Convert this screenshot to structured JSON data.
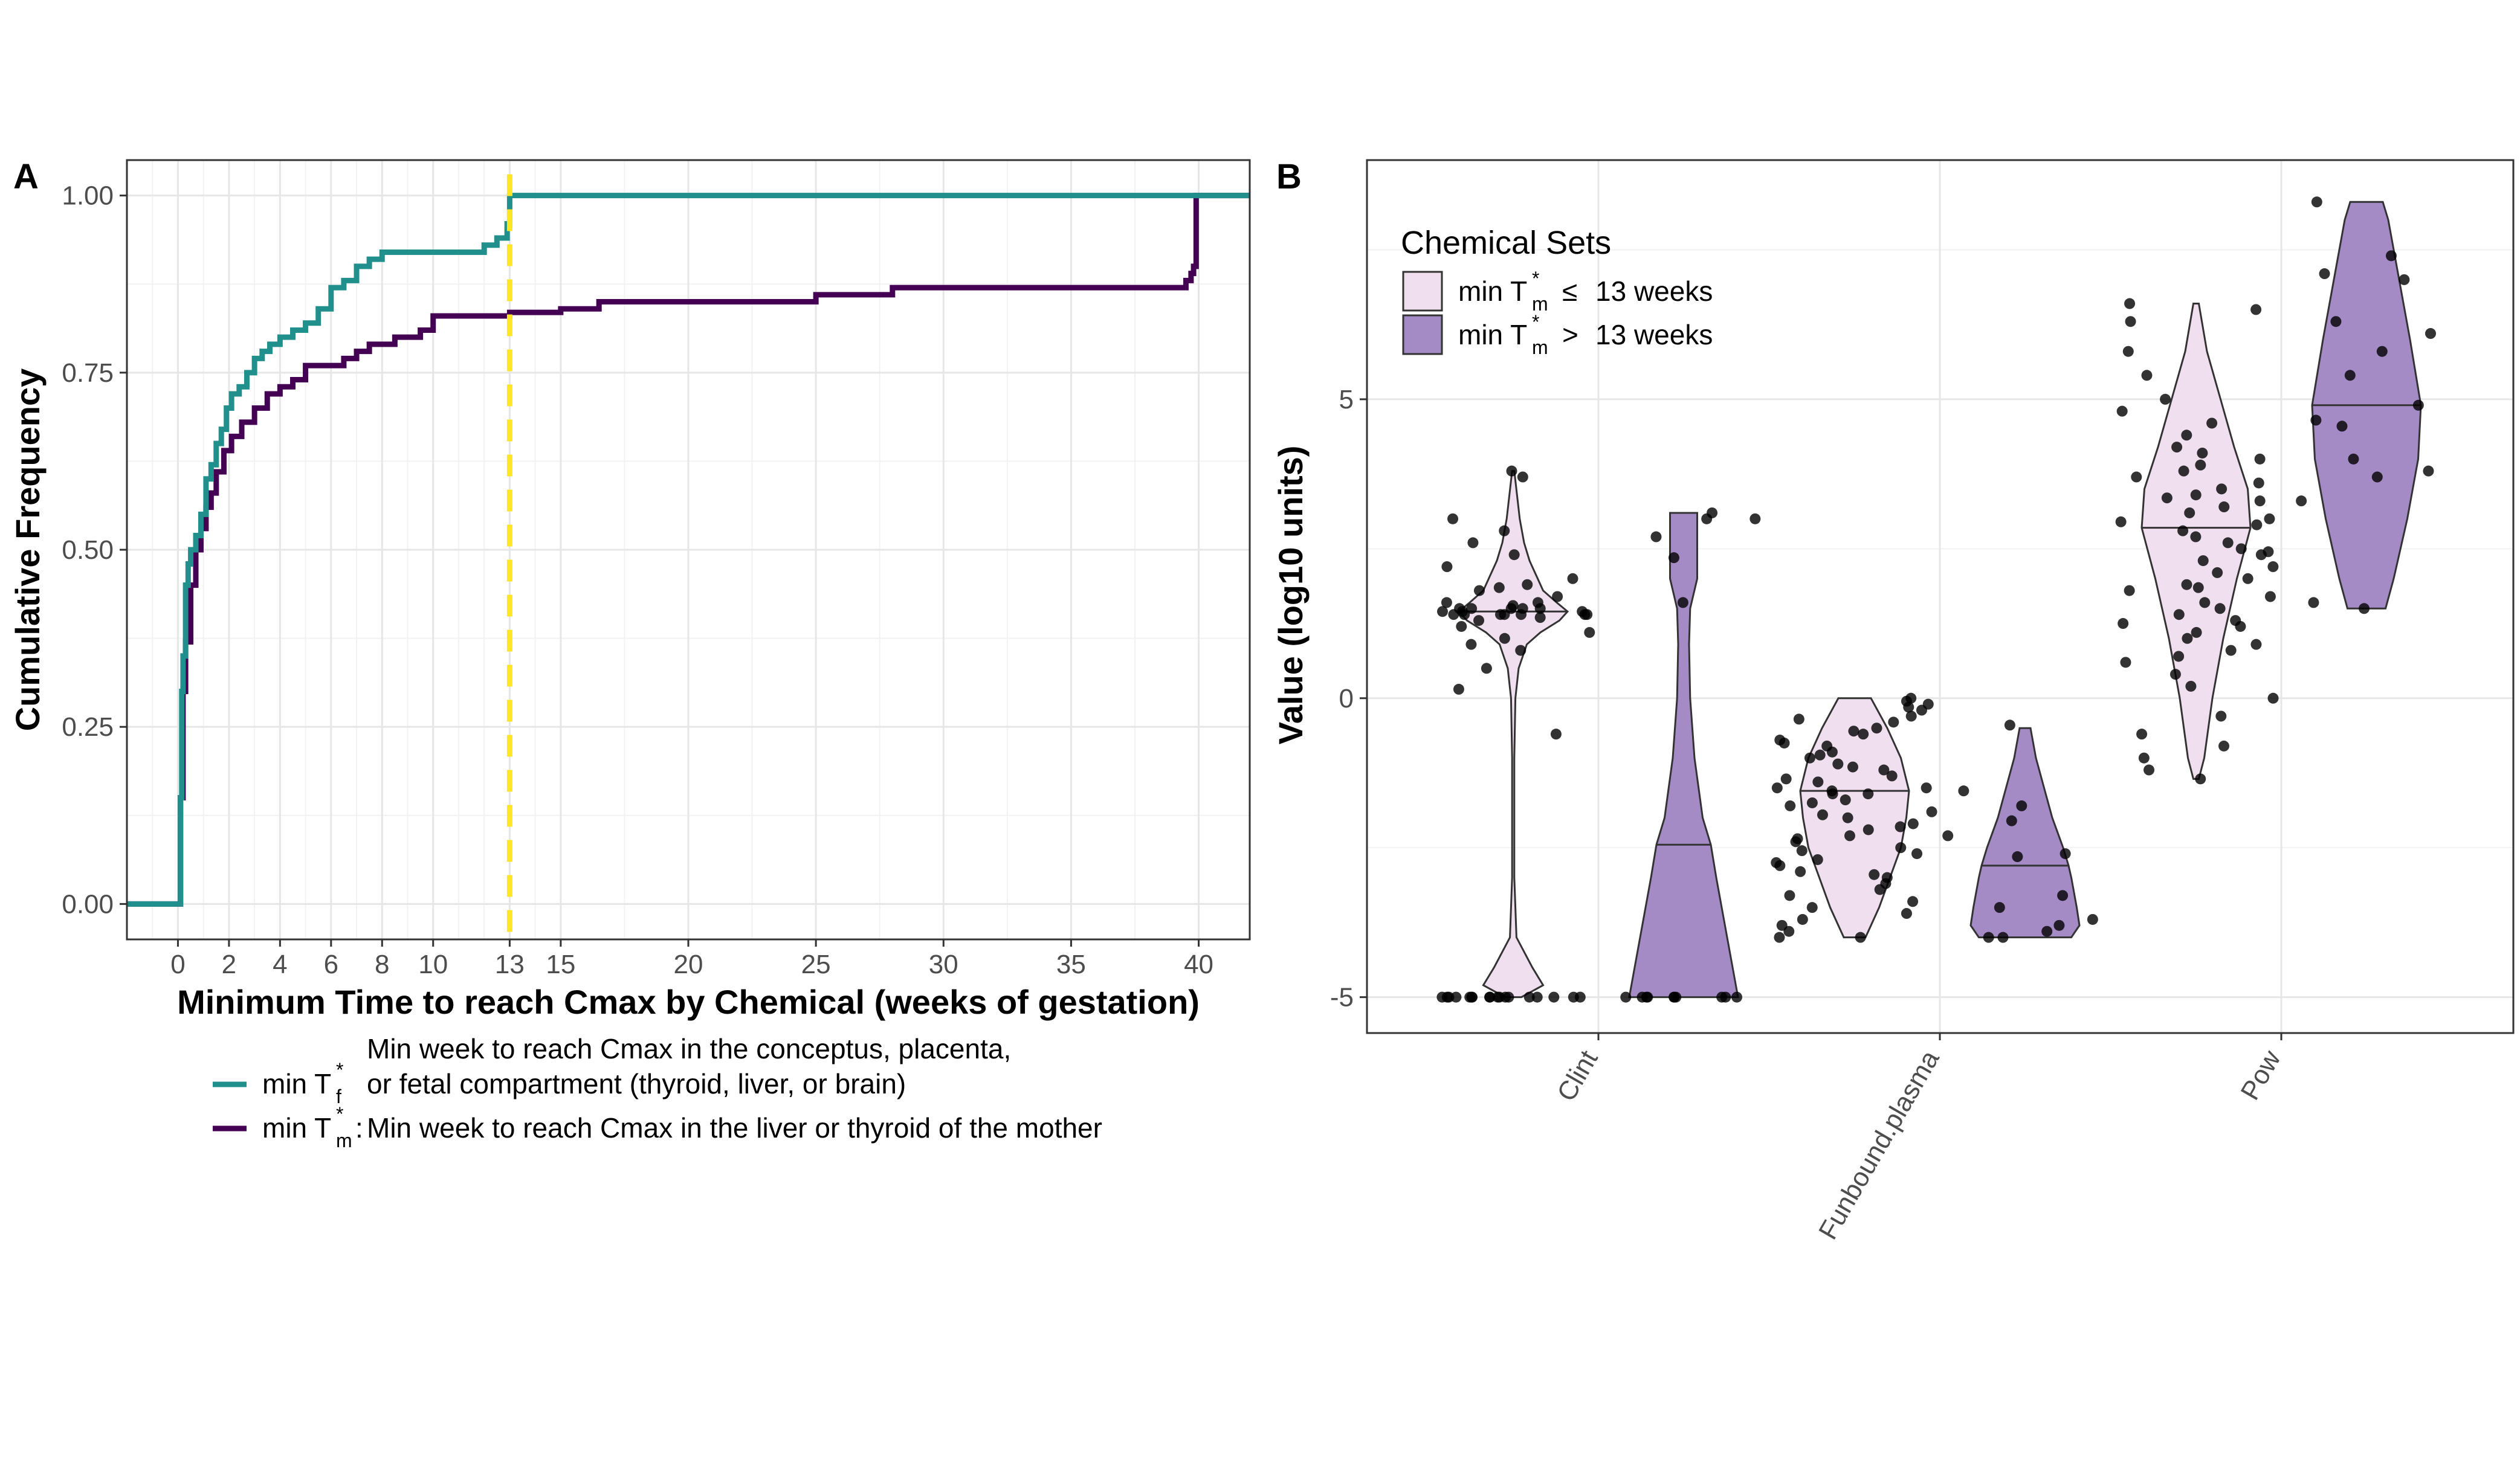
{
  "panelA": {
    "label": "A",
    "title": "",
    "xlabel": "Minimum Time to reach Cmax by Chemical (weeks of gestation)",
    "ylabel": "Cumulative Frequency",
    "xticks": [
      "0",
      "2",
      "4",
      "6",
      "8",
      "10",
      "13",
      "15",
      "20",
      "25",
      "30",
      "35",
      "40"
    ],
    "yticks": [
      "0.00",
      "0.25",
      "0.50",
      "0.75",
      "1.00"
    ],
    "legend": {
      "fetal": {
        "prefix": "min T",
        "sub": "f",
        "sup": "*",
        "line1": "Min week to reach Cmax in the conceptus, placenta,",
        "line2": "or fetal compartment (thyroid, liver, or brain)",
        "color": "#21908C"
      },
      "maternal": {
        "prefix": "min T",
        "sub": "m",
        "sup": "*",
        "colon": ":",
        "text": "Min week to reach Cmax in the liver or thyroid of the mother",
        "color": "#440154"
      }
    },
    "cutoff_color": "#FDE725"
  },
  "panelB": {
    "label": "B",
    "ylabel": "Value (log10 units)",
    "yticks": [
      "-5",
      "0",
      "5"
    ],
    "categories": [
      "Clint",
      "Funbound.plasma",
      "Pow"
    ],
    "legend": {
      "title": "Chemical Sets",
      "le": {
        "prefix": "min T",
        "sub": "m",
        "sup": "*",
        "rel": "≤",
        "text": "13 weeks",
        "color": "#F0DFEE"
      },
      "gt": {
        "prefix": "min T",
        "sub": "m",
        "sup": "*",
        "rel": ">",
        "text": "13 weeks",
        "color": "#A58BC6"
      }
    }
  },
  "chart_data": [
    {
      "type": "line",
      "chart": "A",
      "xlim": [
        -2,
        42
      ],
      "ylim": [
        -0.05,
        1.05
      ],
      "xlabel": "Minimum Time to reach Cmax by Chemical (weeks of gestation)",
      "ylabel": "Cumulative Frequency",
      "cutoff_x": 13,
      "series": [
        {
          "name": "min Tf*",
          "color": "#21908C",
          "step_x": [
            -2,
            0.1,
            0.15,
            0.2,
            0.3,
            0.4,
            0.5,
            0.7,
            0.9,
            1.1,
            1.3,
            1.5,
            1.7,
            1.9,
            2.1,
            2.4,
            2.7,
            3.0,
            3.3,
            3.6,
            4.0,
            4.5,
            5.0,
            5.5,
            6.0,
            6.5,
            7.0,
            7.5,
            8.0,
            12.0,
            12.5,
            12.9,
            13.0,
            42
          ],
          "step_y": [
            0.0,
            0.15,
            0.3,
            0.35,
            0.45,
            0.48,
            0.5,
            0.52,
            0.55,
            0.6,
            0.62,
            0.65,
            0.67,
            0.7,
            0.72,
            0.73,
            0.75,
            0.77,
            0.78,
            0.79,
            0.8,
            0.81,
            0.82,
            0.84,
            0.87,
            0.88,
            0.9,
            0.91,
            0.92,
            0.93,
            0.94,
            0.96,
            1.0,
            1.0
          ]
        },
        {
          "name": "min Tm*",
          "color": "#440154",
          "step_x": [
            -2,
            0.1,
            0.2,
            0.3,
            0.5,
            0.7,
            0.9,
            1.1,
            1.3,
            1.5,
            1.8,
            2.1,
            2.5,
            3.0,
            3.5,
            4.0,
            4.5,
            5.0,
            6.5,
            7.0,
            7.5,
            8.5,
            9.5,
            10.0,
            13.0,
            15.0,
            16.5,
            25.0,
            28.0,
            39.5,
            39.7,
            39.8,
            39.9,
            42
          ],
          "step_y": [
            0.0,
            0.15,
            0.3,
            0.37,
            0.45,
            0.5,
            0.53,
            0.56,
            0.58,
            0.61,
            0.64,
            0.66,
            0.68,
            0.7,
            0.72,
            0.73,
            0.74,
            0.76,
            0.77,
            0.78,
            0.79,
            0.8,
            0.81,
            0.83,
            0.835,
            0.84,
            0.85,
            0.86,
            0.87,
            0.88,
            0.89,
            0.9,
            1.0,
            1.0
          ]
        }
      ]
    },
    {
      "type": "scatter",
      "chart": "B",
      "subtype": "violin_with_jitter",
      "ylim": [
        -5.6,
        9.0
      ],
      "ylabel": "Value (log10 units)",
      "categories": [
        "Clint",
        "Funbound.plasma",
        "Pow"
      ],
      "groups": [
        {
          "category": "Clint",
          "set": "le",
          "color": "#F0DFEE",
          "median": 1.45,
          "violin_y": [
            -5.0,
            -4.8,
            -4.5,
            -4.0,
            -3.0,
            -1.0,
            0.0,
            0.5,
            0.9,
            1.1,
            1.3,
            1.45,
            1.6,
            1.8,
            2.0,
            2.3,
            2.6,
            3.0,
            3.4,
            3.8
          ],
          "violin_w": [
            0.15,
            0.55,
            0.35,
            0.06,
            0.02,
            0.02,
            0.04,
            0.1,
            0.25,
            0.5,
            0.85,
            1.0,
            0.8,
            0.55,
            0.45,
            0.3,
            0.2,
            0.12,
            0.07,
            0.02
          ],
          "points": [
            3.8,
            3.7,
            3.0,
            2.6,
            2.8,
            2.4,
            2.2,
            2.0,
            1.9,
            1.85,
            1.8,
            1.7,
            1.6,
            1.6,
            1.55,
            1.5,
            1.5,
            1.5,
            1.5,
            1.5,
            1.45,
            1.45,
            1.45,
            1.4,
            1.4,
            1.4,
            1.4,
            1.4,
            1.4,
            1.4,
            1.35,
            1.3,
            1.2,
            1.1,
            1.0,
            0.9,
            0.8,
            0.5,
            0.15,
            -0.6,
            -5.0,
            -5.0,
            -5.0,
            -5.0,
            -5.0,
            -5.0,
            -5.0,
            -5.0,
            -5.0,
            -5.0,
            -5.0,
            -5.0,
            -5.0,
            -5.0,
            -5.0,
            -5.0,
            -5.0,
            -5.0
          ]
        },
        {
          "category": "Clint",
          "set": "gt",
          "color": "#A58BC6",
          "median": -2.45,
          "violin_y": [
            -5.0,
            -4.0,
            -3.0,
            -2.45,
            -2.0,
            -1.0,
            0.0,
            0.9,
            1.5,
            2.0,
            3.1
          ],
          "violin_w": [
            1.0,
            0.8,
            0.6,
            0.5,
            0.35,
            0.2,
            0.12,
            0.1,
            0.12,
            0.25,
            0.25
          ],
          "points": [
            3.1,
            3.0,
            3.0,
            2.7,
            2.35,
            1.6,
            -5.0,
            -5.0,
            -5.0,
            -5.0,
            -5.0,
            -5.0,
            -5.0,
            -5.0,
            -5.0,
            -5.0
          ]
        },
        {
          "category": "Funbound.plasma",
          "set": "le",
          "color": "#F0DFEE",
          "median": -1.55,
          "violin_y": [
            -4.0,
            -3.8,
            -3.5,
            -3.0,
            -2.5,
            -2.0,
            -1.55,
            -1.0,
            -0.5,
            0.0
          ],
          "violin_w": [
            0.2,
            0.3,
            0.45,
            0.65,
            0.85,
            0.95,
            1.0,
            0.85,
            0.6,
            0.3
          ],
          "points": [
            0.0,
            -0.1,
            -0.2,
            -0.3,
            -0.4,
            -0.5,
            -0.6,
            -0.7,
            -0.8,
            -0.9,
            -1.0,
            -1.1,
            -1.2,
            -1.3,
            -1.4,
            -1.5,
            -1.5,
            -1.6,
            -1.6,
            -1.7,
            -1.8,
            -1.9,
            -2.0,
            -2.1,
            -2.2,
            -2.3,
            -2.4,
            -2.5,
            -2.6,
            -2.7,
            -2.8,
            -2.9,
            -3.0,
            -3.1,
            -3.2,
            -3.4,
            -3.5,
            -3.6,
            -3.7,
            -3.8,
            -3.9,
            -4.0,
            -4.0,
            -0.05,
            -0.15,
            -0.35,
            -0.55,
            -0.75,
            -0.95,
            -1.15,
            -1.35,
            -1.55,
            -1.75,
            -1.95,
            -2.15,
            -2.35,
            -2.55,
            -2.75,
            -2.95,
            -3.3
          ]
        },
        {
          "category": "Funbound.plasma",
          "set": "gt",
          "color": "#A58BC6",
          "median": -2.8,
          "violin_y": [
            -4.0,
            -3.8,
            -3.5,
            -3.0,
            -2.8,
            -2.5,
            -2.0,
            -1.5,
            -1.0,
            -0.5
          ],
          "violin_w": [
            0.85,
            1.0,
            0.95,
            0.85,
            0.8,
            0.7,
            0.5,
            0.35,
            0.2,
            0.1
          ],
          "points": [
            -0.45,
            -1.55,
            -1.8,
            -2.05,
            -2.3,
            -2.6,
            -2.65,
            -3.3,
            -3.5,
            -3.7,
            -3.8,
            -3.9,
            -4.0,
            -4.0
          ]
        },
        {
          "category": "Pow",
          "set": "le",
          "color": "#F0DFEE",
          "median": 2.85,
          "violin_y": [
            -1.35,
            -1.0,
            0.0,
            1.0,
            2.0,
            2.85,
            3.5,
            4.2,
            5.0,
            5.8,
            6.6
          ],
          "violin_w": [
            0.05,
            0.15,
            0.3,
            0.5,
            0.75,
            1.0,
            0.95,
            0.7,
            0.45,
            0.2,
            0.05
          ],
          "points": [
            6.6,
            6.5,
            6.3,
            5.8,
            5.4,
            5.0,
            4.8,
            4.6,
            4.4,
            4.2,
            4.1,
            4.0,
            3.9,
            3.8,
            3.7,
            3.6,
            3.5,
            3.4,
            3.3,
            3.2,
            3.1,
            3.0,
            2.9,
            2.8,
            2.7,
            2.6,
            2.5,
            2.4,
            2.3,
            2.2,
            2.1,
            2.0,
            1.9,
            1.8,
            1.7,
            1.6,
            1.5,
            1.4,
            1.3,
            1.2,
            1.1,
            1.0,
            0.9,
            0.8,
            0.6,
            0.4,
            0.2,
            0.0,
            -0.3,
            -0.6,
            -0.8,
            -1.0,
            -1.2,
            -1.35,
            3.35,
            2.95,
            2.45,
            1.85,
            1.25,
            0.7
          ]
        },
        {
          "category": "Pow",
          "set": "gt",
          "color": "#A58BC6",
          "median": 4.9,
          "violin_y": [
            1.5,
            2.0,
            3.0,
            4.0,
            4.9,
            6.0,
            7.0,
            8.0,
            8.3
          ],
          "violin_w": [
            0.35,
            0.5,
            0.75,
            0.95,
            1.0,
            0.8,
            0.6,
            0.4,
            0.3
          ],
          "points": [
            8.3,
            7.4,
            7.1,
            7.0,
            6.3,
            6.1,
            5.8,
            5.4,
            4.9,
            4.65,
            4.55,
            4.0,
            3.8,
            3.7,
            3.3,
            1.6,
            1.5
          ]
        }
      ]
    }
  ]
}
